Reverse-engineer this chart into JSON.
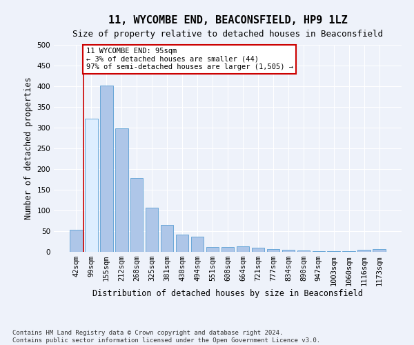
{
  "title": "11, WYCOMBE END, BEACONSFIELD, HP9 1LZ",
  "subtitle": "Size of property relative to detached houses in Beaconsfield",
  "xlabel": "Distribution of detached houses by size in Beaconsfield",
  "ylabel": "Number of detached properties",
  "categories": [
    "42sqm",
    "99sqm",
    "155sqm",
    "212sqm",
    "268sqm",
    "325sqm",
    "381sqm",
    "438sqm",
    "494sqm",
    "551sqm",
    "608sqm",
    "664sqm",
    "721sqm",
    "777sqm",
    "834sqm",
    "890sqm",
    "947sqm",
    "1003sqm",
    "1060sqm",
    "1116sqm",
    "1173sqm"
  ],
  "values": [
    54,
    322,
    401,
    298,
    179,
    107,
    65,
    42,
    36,
    12,
    12,
    14,
    10,
    7,
    5,
    4,
    2,
    1,
    1,
    5,
    6
  ],
  "bar_color": "#aec6e8",
  "bar_edge_color": "#5a9fd4",
  "highlight_bar_index": 1,
  "highlight_color": "#ddeeff",
  "highlight_edge_color": "#cc0000",
  "annotation_text": "11 WYCOMBE END: 95sqm\n← 3% of detached houses are smaller (44)\n97% of semi-detached houses are larger (1,505) →",
  "annotation_box_facecolor": "#ffffff",
  "annotation_box_edgecolor": "#cc0000",
  "ylim": [
    0,
    500
  ],
  "yticks": [
    0,
    50,
    100,
    150,
    200,
    250,
    300,
    350,
    400,
    450,
    500
  ],
  "footer_line1": "Contains HM Land Registry data © Crown copyright and database right 2024.",
  "footer_line2": "Contains public sector information licensed under the Open Government Licence v3.0.",
  "background_color": "#eef2fa",
  "grid_color": "#ffffff",
  "title_fontsize": 11,
  "subtitle_fontsize": 9,
  "xlabel_fontsize": 8.5,
  "ylabel_fontsize": 8.5,
  "tick_fontsize": 7.5,
  "annotation_fontsize": 7.5,
  "footer_fontsize": 6.5
}
